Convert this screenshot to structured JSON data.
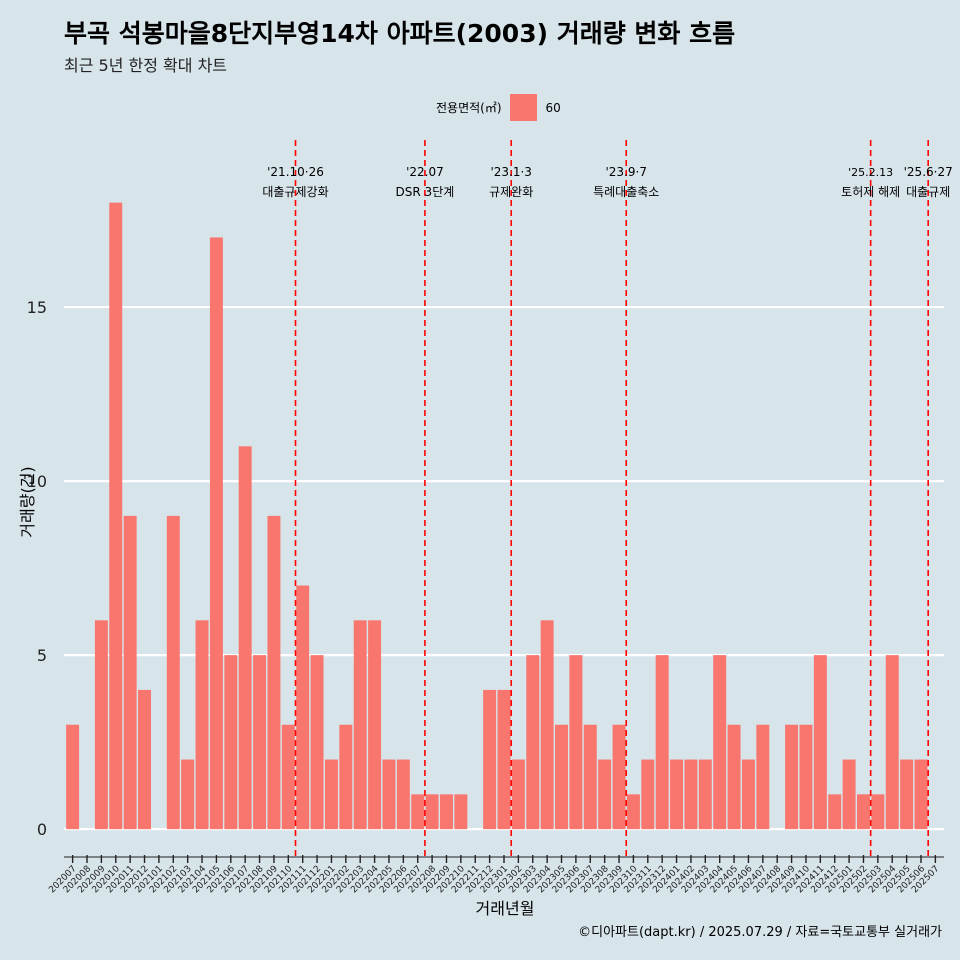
{
  "title": "부곡 석봉마을8단지부영14차 아파트(2003) 거래량 변화 흐름",
  "subtitle": "최근 5년 한정 확대 차트",
  "legend": {
    "title": "전용면적(㎡)",
    "label": "60"
  },
  "caption": "©디아파트(dapt.kr) / 2025.07.29 / 자료=국토교통부 실거래가",
  "colors": {
    "bar": "#f8766d",
    "vline": "#ff0000",
    "background": "#d7e4ea",
    "grid": "#ffffff"
  },
  "chart_data": {
    "type": "bar",
    "xlabel": "거래년월",
    "ylabel": "거래량(건)",
    "ylim": [
      -0.8,
      19.8
    ],
    "yticks": [
      0,
      5,
      10,
      15
    ],
    "grid": "horizontal",
    "legend_position": "top",
    "categories": [
      "202007",
      "202008",
      "202009",
      "202010",
      "202011",
      "202012",
      "202101",
      "202102",
      "202103",
      "202104",
      "202105",
      "202106",
      "202107",
      "202108",
      "202109",
      "202110",
      "202111",
      "202112",
      "202201",
      "202202",
      "202203",
      "202204",
      "202205",
      "202206",
      "202207",
      "202208",
      "202209",
      "202210",
      "202211",
      "202212",
      "202301",
      "202302",
      "202303",
      "202304",
      "202305",
      "202306",
      "202307",
      "202308",
      "202309",
      "202310",
      "202311",
      "202312",
      "202401",
      "202402",
      "202403",
      "202404",
      "202405",
      "202406",
      "202407",
      "202408",
      "202409",
      "202410",
      "202411",
      "202412",
      "202501",
      "202502",
      "202503",
      "202504",
      "202505",
      "202506",
      "202507"
    ],
    "series": [
      {
        "name": "60",
        "values": [
          3,
          0,
          6,
          18,
          9,
          4,
          0,
          9,
          2,
          6,
          17,
          5,
          11,
          5,
          9,
          3,
          7,
          5,
          2,
          3,
          6,
          6,
          2,
          2,
          1,
          1,
          1,
          1,
          0,
          4,
          4,
          2,
          5,
          6,
          3,
          5,
          3,
          2,
          3,
          1,
          2,
          5,
          2,
          2,
          2,
          5,
          3,
          2,
          3,
          0,
          3,
          3,
          5,
          1,
          2,
          1,
          1,
          5,
          2,
          2,
          0
        ]
      }
    ],
    "bar_slots": [
      "202008",
      "",
      "202010",
      "202011",
      "202012",
      "202101",
      "202102",
      "202103",
      "202104",
      "202105",
      "202106",
      "202107",
      "202108",
      "202109",
      "202110",
      "202111",
      "202112",
      "202201",
      "202202",
      "202203",
      "202204",
      "202205",
      "202206",
      "202207",
      "202208",
      "202209",
      "202210",
      "202211",
      "202212",
      "202301",
      "202302",
      "202303",
      "202304",
      "202305",
      "202306",
      "202307",
      "202308",
      "202309",
      "202310",
      "202311",
      "202312",
      "202401",
      "202402",
      "202403",
      "202404",
      "202405",
      "202406",
      "202407",
      "202408",
      "202409",
      "202410",
      "202411",
      "202412",
      "202501",
      "202502",
      "202503",
      "202504",
      "202505",
      "202506",
      "202507",
      ""
    ],
    "annotations": [
      {
        "x": "202110",
        "date": "'21.10·26",
        "label": "대출규제강화"
      },
      {
        "x": "202207",
        "date": "'22.07",
        "label": "DSR 3단계"
      },
      {
        "x": "202301",
        "date": "'23.1·3",
        "label": "규제완화"
      },
      {
        "x": "202309",
        "date": "'23.9·7",
        "label": "특례대출축소"
      },
      {
        "x": "202502",
        "date": "'25.2.13",
        "label": "토허제 해제"
      },
      {
        "x": "202506",
        "date": "'25.6·27",
        "label": "대출규제"
      }
    ]
  }
}
